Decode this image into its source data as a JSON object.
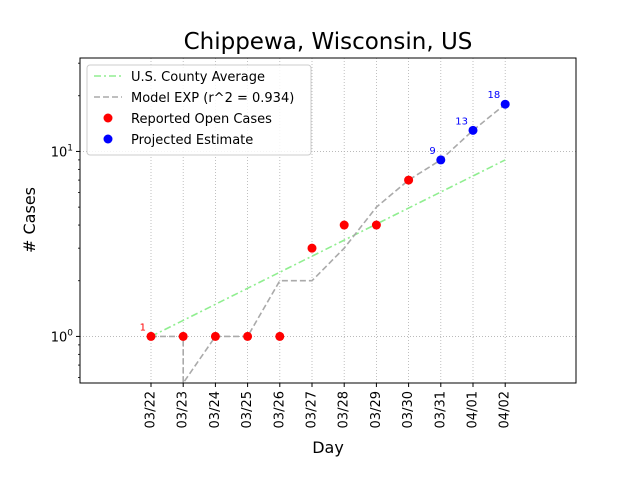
{
  "chart_data": {
    "type": "line",
    "title": "Chippewa, Wisconsin, US",
    "xlabel": "Day",
    "ylabel": "# Cases",
    "yscale": "log",
    "ylim": [
      0.56,
      32
    ],
    "x_ticks": [
      "03/22",
      "03/23",
      "03/24",
      "03/25",
      "03/26",
      "03/27",
      "03/28",
      "03/29",
      "03/30",
      "03/31",
      "04/01",
      "04/02"
    ],
    "y_ticks": [
      {
        "value": 1,
        "label": "10^0"
      },
      {
        "value": 10,
        "label": "10^1"
      }
    ],
    "grid": true,
    "legend_position": "top-left",
    "series": [
      {
        "name": "U.S. County Average",
        "style": "dash-dot",
        "color": "#90ee90",
        "x": [
          "03/22",
          "04/02"
        ],
        "values": [
          1.0,
          9.0
        ]
      },
      {
        "name": "Model EXP (r^2 = 0.934)",
        "style": "dashed",
        "color": "#aaaaaa",
        "x": [
          "03/22",
          "03/23",
          "03/23",
          "03/24",
          "03/25",
          "03/26",
          "03/27",
          "03/28",
          "03/29",
          "03/30",
          "03/31",
          "04/01",
          "04/02"
        ],
        "values": [
          1,
          1,
          0.5,
          1,
          1,
          2,
          2,
          3,
          5,
          7,
          9,
          13,
          18
        ]
      },
      {
        "name": "Reported Open Cases",
        "style": "markers",
        "color": "#ff0000",
        "x": [
          "03/22",
          "03/23",
          "03/24",
          "03/25",
          "03/26",
          "03/27",
          "03/28",
          "03/29",
          "03/30"
        ],
        "values": [
          1,
          1,
          1,
          1,
          1,
          3,
          4,
          4,
          7
        ]
      },
      {
        "name": "Projected Estimate",
        "style": "markers",
        "color": "#0000ff",
        "x": [
          "03/31",
          "04/01",
          "04/02"
        ],
        "values": [
          9,
          13,
          18
        ]
      }
    ],
    "annotations": [
      {
        "x": "03/22",
        "y": 1,
        "text": "1",
        "color": "#ff0000"
      },
      {
        "x": "03/31",
        "y": 9,
        "text": "9",
        "color": "#0000ff"
      },
      {
        "x": "04/01",
        "y": 13,
        "text": "13",
        "color": "#0000ff"
      },
      {
        "x": "04/02",
        "y": 18,
        "text": "18",
        "color": "#0000ff"
      }
    ]
  }
}
